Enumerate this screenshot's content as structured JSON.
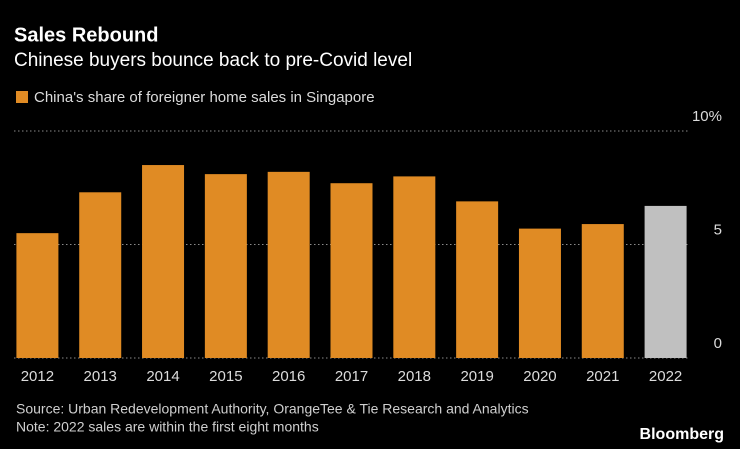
{
  "chart_data": {
    "type": "bar",
    "title": "Sales Rebound",
    "subtitle": "Chinese buyers bounce back to pre-Covid level",
    "categories": [
      "2012",
      "2013",
      "2014",
      "2015",
      "2016",
      "2017",
      "2018",
      "2019",
      "2020",
      "2021",
      "2022"
    ],
    "series": [
      {
        "name": "China's share of foreigner home sales in Singapore",
        "color": "#e08b24",
        "values": [
          5.5,
          7.3,
          8.5,
          8.1,
          8.2,
          7.7,
          8.0,
          6.9,
          5.7,
          5.9,
          6.7
        ],
        "colors": [
          "#e08b24",
          "#e08b24",
          "#e08b24",
          "#e08b24",
          "#e08b24",
          "#e08b24",
          "#e08b24",
          "#e08b24",
          "#e08b24",
          "#e08b24",
          "#c0c0c0"
        ]
      }
    ],
    "ylim": [
      0,
      10
    ],
    "yticks": [
      0,
      5,
      {
        "value": 10,
        "label": "10%"
      }
    ],
    "grid": true,
    "source": "Source: Urban Redevelopment Authority, OrangeTee & Tie Research and Analytics",
    "note": "Note: 2022 sales are within the first eight months",
    "brand": "Bloomberg"
  }
}
